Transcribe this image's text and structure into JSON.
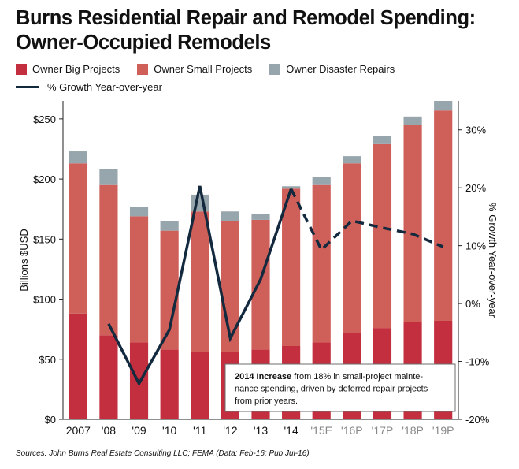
{
  "header": {
    "title_line1": "Burns Residential Repair and Remodel Spending:",
    "title_line2": "Owner-Occupied Remodels"
  },
  "legend": {
    "big": "Owner Big Projects",
    "small": "Owner Small Projects",
    "disaster": "Owner Disaster Repairs",
    "growth": "% Growth Year-over-year"
  },
  "colors": {
    "big": "#c32f3f",
    "small": "#cf5f59",
    "disaster": "#97a6ac",
    "line": "#13293d"
  },
  "chart_data": {
    "type": "bar",
    "stacked": true,
    "categories": [
      "2007",
      "'08",
      "'09",
      "'10",
      "'11",
      "'12",
      "'13",
      "'14",
      "'15E",
      "'16P",
      "'17P",
      "'18P",
      "'19P"
    ],
    "series": [
      {
        "name": "Owner Big Projects",
        "values": [
          88,
          70,
          64,
          58,
          56,
          56,
          58,
          61,
          64,
          72,
          76,
          81,
          82
        ]
      },
      {
        "name": "Owner Small Projects",
        "values": [
          125,
          125,
          105,
          99,
          117,
          109,
          108,
          131,
          131,
          141,
          153,
          164,
          175
        ]
      },
      {
        "name": "Owner Disaster Repairs",
        "values": [
          10,
          13,
          8,
          8,
          14,
          8,
          5,
          2,
          7,
          6,
          7,
          7,
          8
        ]
      }
    ],
    "line_series": {
      "name": "% Growth Year-over-year",
      "values": [
        null,
        -3.5,
        -13.8,
        -4.5,
        20.3,
        -6.0,
        4.2,
        19.8,
        9.3,
        14.3,
        13.1,
        12.0,
        9.8
      ],
      "dashed_from_index": 7
    },
    "ylabel": "Billions $USD",
    "ylabel_right": "% Growth Year-over-year",
    "ylim": [
      0,
      265
    ],
    "y_right_lim": [
      -20,
      35
    ],
    "y_ticks": [
      0,
      50,
      100,
      150,
      200,
      250
    ],
    "y_tick_labels": [
      "$0",
      "$50",
      "$100",
      "$150",
      "$200",
      "$250"
    ],
    "y_right_ticks": [
      -20,
      -10,
      0,
      10,
      20,
      30
    ],
    "y_right_tick_labels": [
      "-20%",
      "-10%",
      "0%",
      "10%",
      "20%",
      "30%"
    ],
    "annotation": {
      "bold": "2014 Increase",
      "text": " from 18% in small-project maintenance spending, driven by deferred repair projects from prior years."
    },
    "grid": false
  },
  "footer": {
    "source": "Sources: John Burns Real Estate Consulting LLC; FEMA (Data: Feb-16; Pub Jul-16)"
  }
}
